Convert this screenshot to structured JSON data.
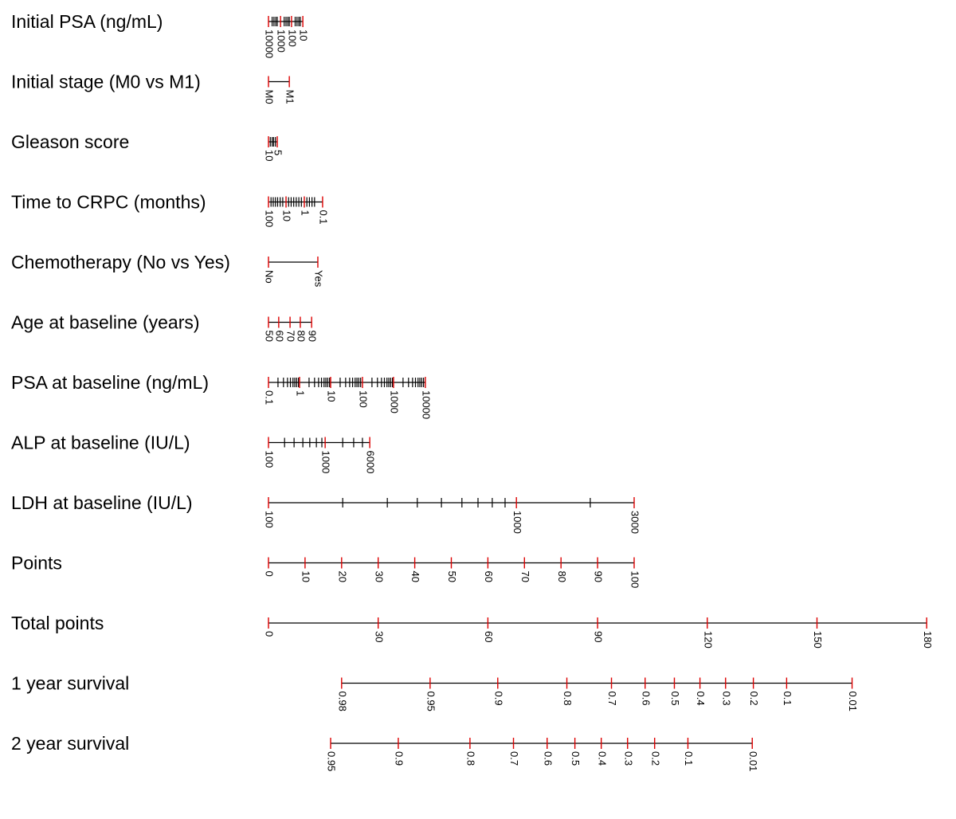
{
  "chart_data": {
    "type": "nomogram",
    "points_lim": [
      0,
      100
    ],
    "rows": [
      {
        "label": "Initial PSA (ng/mL)",
        "ticks": [
          {
            "label": "10000",
            "at": 0
          },
          {
            "label": "1000",
            "at": 3.3
          },
          {
            "label": "100",
            "at": 6.3
          },
          {
            "label": "10",
            "at": 9.4
          }
        ],
        "minor_ticks": [
          1.0,
          1.5,
          2.0,
          2.4,
          4.3,
          4.8,
          5.3,
          5.7,
          7.3,
          7.8,
          8.3,
          8.7
        ]
      },
      {
        "label": "Initial stage (M0 vs M1)",
        "ticks": [
          {
            "label": "M0",
            "at": 0
          },
          {
            "label": "M1",
            "at": 5.7
          }
        ],
        "minor_ticks": []
      },
      {
        "label": "Gleason score",
        "ticks": [
          {
            "label": "10",
            "at": 0
          },
          {
            "label": "5",
            "at": 2.4
          }
        ],
        "minor_ticks": [
          0.5,
          1.0,
          1.4,
          1.9
        ]
      },
      {
        "label": "Time to CRPC (months)",
        "ticks": [
          {
            "label": "100",
            "at": 0
          },
          {
            "label": "10",
            "at": 4.8
          },
          {
            "label": "1",
            "at": 9.8
          },
          {
            "label": "0.1",
            "at": 14.8
          }
        ],
        "minor_ticks": [
          0.7,
          1.3,
          1.9,
          2.5,
          3.2,
          3.9,
          5.5,
          6.2,
          6.9,
          7.6,
          8.3,
          9.0,
          10.5,
          11.2,
          11.9,
          12.6
        ]
      },
      {
        "label": "Chemotherapy (No vs Yes)",
        "ticks": [
          {
            "label": "No",
            "at": 0
          },
          {
            "label": "Yes",
            "at": 13.5
          }
        ],
        "minor_ticks": []
      },
      {
        "label": "Age at baseline (years)",
        "ticks": [
          {
            "label": "50",
            "at": 0
          },
          {
            "label": "60",
            "at": 2.8
          },
          {
            "label": "70",
            "at": 5.9
          },
          {
            "label": "80",
            "at": 8.7
          },
          {
            "label": "90",
            "at": 11.8
          }
        ],
        "minor_ticks": []
      },
      {
        "label": "PSA at baseline (ng/mL)",
        "ticks": [
          {
            "label": "0.1",
            "at": 0
          },
          {
            "label": "1",
            "at": 8.5
          },
          {
            "label": "10",
            "at": 17
          },
          {
            "label": "100",
            "at": 25.7
          },
          {
            "label": "1000",
            "at": 34.2
          },
          {
            "label": "10000",
            "at": 42.9
          }
        ],
        "minor_ticks": [
          2.6,
          4.1,
          5.2,
          6.0,
          6.7,
          7.2,
          7.7,
          8.2,
          11.1,
          12.6,
          13.7,
          14.5,
          15.2,
          15.7,
          16.2,
          16.7,
          19.6,
          21.1,
          22.2,
          23.0,
          23.7,
          24.2,
          24.7,
          25.2,
          28.3,
          29.8,
          30.9,
          31.7,
          32.4,
          32.9,
          33.4,
          33.9,
          36.8,
          38.3,
          39.4,
          40.2,
          40.9,
          41.4,
          41.9,
          42.4
        ]
      },
      {
        "label": "ALP at baseline (IU/L)",
        "ticks": [
          {
            "label": "100",
            "at": 0
          },
          {
            "label": "1000",
            "at": 15.5
          },
          {
            "label": "6000",
            "at": 27.7
          }
        ],
        "minor_ticks": [
          4.4,
          7.0,
          9.4,
          11.3,
          13.1,
          14.6,
          20.3,
          23.3,
          25.7
        ]
      },
      {
        "label": "LDH at baseline (IU/L)",
        "ticks": [
          {
            "label": "100",
            "at": 0
          },
          {
            "label": "1000",
            "at": 67.8
          },
          {
            "label": "3000",
            "at": 100
          }
        ],
        "minor_ticks": [
          20.3,
          32.5,
          40.7,
          47.3,
          52.9,
          57.3,
          61.2,
          64.7,
          88
        ]
      },
      {
        "label": "Points",
        "ticks": [
          0,
          10,
          20,
          30,
          40,
          50,
          60,
          70,
          80,
          90,
          100
        ],
        "minor_ticks": []
      },
      {
        "label": "Total points",
        "ticks": [
          0,
          30,
          60,
          90,
          120,
          150,
          180
        ],
        "minor_ticks": []
      },
      {
        "label": "1 year survival",
        "ticks": [
          {
            "label": "0.98",
            "at": 20.0
          },
          {
            "label": "0.95",
            "at": 44.2
          },
          {
            "label": "0.9",
            "at": 62.7
          },
          {
            "label": "0.8",
            "at": 81.6
          },
          {
            "label": "0.7",
            "at": 93.8
          },
          {
            "label": "0.6",
            "at": 103
          },
          {
            "label": "0.5",
            "at": 111
          },
          {
            "label": "0.4",
            "at": 118
          },
          {
            "label": "0.3",
            "at": 125
          },
          {
            "label": "0.2",
            "at": 132.6
          },
          {
            "label": "0.1",
            "at": 141.7
          },
          {
            "label": "0.01",
            "at": 159.6
          }
        ],
        "minor_ticks": []
      },
      {
        "label": "2 year survival",
        "ticks": [
          {
            "label": "0.95",
            "at": 17
          },
          {
            "label": "0.9",
            "at": 35.5
          },
          {
            "label": "0.8",
            "at": 55.1
          },
          {
            "label": "0.7",
            "at": 67
          },
          {
            "label": "0.6",
            "at": 76.2
          },
          {
            "label": "0.5",
            "at": 83.8
          },
          {
            "label": "0.4",
            "at": 91
          },
          {
            "label": "0.3",
            "at": 98.2
          },
          {
            "label": "0.2",
            "at": 105.6
          },
          {
            "label": "0.1",
            "at": 114.7
          },
          {
            "label": "0.01",
            "at": 132.3
          }
        ],
        "minor_ticks": []
      }
    ]
  }
}
